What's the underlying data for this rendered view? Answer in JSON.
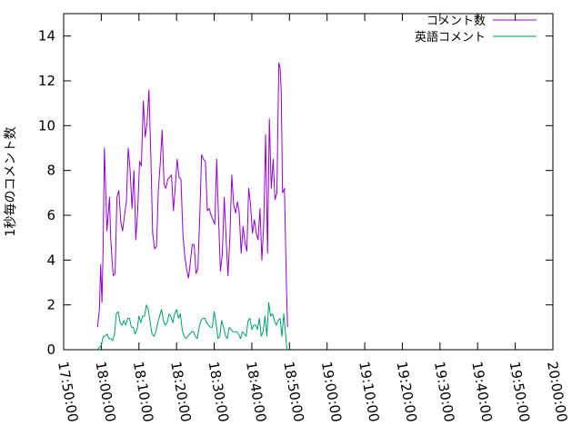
{
  "chart_data": {
    "type": "line",
    "ylabel": "1秒毎のコメント数",
    "xlabel": "",
    "title": "",
    "ylim": [
      0,
      15
    ],
    "xlim": [
      "17:50:00",
      "20:00:00"
    ],
    "x_ticks": [
      "17:50:00",
      "18:00:00",
      "18:10:00",
      "18:20:00",
      "18:30:00",
      "18:40:00",
      "18:50:00",
      "19:00:00",
      "19:10:00",
      "19:20:00",
      "19:30:00",
      "19:40:00",
      "19:50:00",
      "20:00:00"
    ],
    "y_ticks": [
      "0",
      "2",
      "4",
      "6",
      "8",
      "10",
      "12",
      "14"
    ],
    "grid": false,
    "legend": "top-right",
    "series": [
      {
        "name": "コメント数",
        "color": "#9400d3",
        "points": [
          [
            "17:59:00",
            1.0
          ],
          [
            "17:59:30",
            1.8
          ],
          [
            "17:59:50",
            3.8
          ],
          [
            "18:00:10",
            2.1
          ],
          [
            "18:00:30",
            4.7
          ],
          [
            "18:00:50",
            9.0
          ],
          [
            "18:01:10",
            7.2
          ],
          [
            "18:01:30",
            5.3
          ],
          [
            "18:02:10",
            6.8
          ],
          [
            "18:02:30",
            5.0
          ],
          [
            "18:02:50",
            4.1
          ],
          [
            "18:03:10",
            3.3
          ],
          [
            "18:03:40",
            3.4
          ],
          [
            "18:04:10",
            6.8
          ],
          [
            "18:04:40",
            7.1
          ],
          [
            "18:05:10",
            5.7
          ],
          [
            "18:05:40",
            5.3
          ],
          [
            "18:06:10",
            6.0
          ],
          [
            "18:06:40",
            6.6
          ],
          [
            "18:07:10",
            9.0
          ],
          [
            "18:07:40",
            8.0
          ],
          [
            "18:08:10",
            6.3
          ],
          [
            "18:08:40",
            8.0
          ],
          [
            "18:09:10",
            4.9
          ],
          [
            "18:09:40",
            6.2
          ],
          [
            "18:10:10",
            8.4
          ],
          [
            "18:10:40",
            8.2
          ],
          [
            "18:11:10",
            11.1
          ],
          [
            "18:11:40",
            9.5
          ],
          [
            "18:12:10",
            10.1
          ],
          [
            "18:12:40",
            11.6
          ],
          [
            "18:13:10",
            8.6
          ],
          [
            "18:13:40",
            5.2
          ],
          [
            "18:14:10",
            4.5
          ],
          [
            "18:14:40",
            4.6
          ],
          [
            "18:15:10",
            7.2
          ],
          [
            "18:15:40",
            8.3
          ],
          [
            "18:16:10",
            9.8
          ],
          [
            "18:16:40",
            7.4
          ],
          [
            "18:17:10",
            7.2
          ],
          [
            "18:17:40",
            7.6
          ],
          [
            "18:18:40",
            7.8
          ],
          [
            "18:19:10",
            6.2
          ],
          [
            "18:19:40",
            7.3
          ],
          [
            "18:20:10",
            8.5
          ],
          [
            "18:20:40",
            7.7
          ],
          [
            "18:21:10",
            7.6
          ],
          [
            "18:21:40",
            5.2
          ],
          [
            "18:22:10",
            4.2
          ],
          [
            "18:22:40",
            3.6
          ],
          [
            "18:23:10",
            3.2
          ],
          [
            "18:23:40",
            3.9
          ],
          [
            "18:24:10",
            4.7
          ],
          [
            "18:24:40",
            4.7
          ],
          [
            "18:25:10",
            3.4
          ],
          [
            "18:25:40",
            3.6
          ],
          [
            "18:26:10",
            6.0
          ],
          [
            "18:26:40",
            8.7
          ],
          [
            "18:27:10",
            8.5
          ],
          [
            "18:27:40",
            8.4
          ],
          [
            "18:28:10",
            6.2
          ],
          [
            "18:28:40",
            6.3
          ],
          [
            "18:29:10",
            6.0
          ],
          [
            "18:29:40",
            5.8
          ],
          [
            "18:30:10",
            5.6
          ],
          [
            "18:30:40",
            8.5
          ],
          [
            "18:31:10",
            5.8
          ],
          [
            "18:31:40",
            3.5
          ],
          [
            "18:32:10",
            4.3
          ],
          [
            "18:32:40",
            6.8
          ],
          [
            "18:33:10",
            5.0
          ],
          [
            "18:33:40",
            3.3
          ],
          [
            "18:34:10",
            5.0
          ],
          [
            "18:34:40",
            7.8
          ],
          [
            "18:35:10",
            6.5
          ],
          [
            "18:35:40",
            6.1
          ],
          [
            "18:36:10",
            6.6
          ],
          [
            "18:36:40",
            6.1
          ],
          [
            "18:37:10",
            4.3
          ],
          [
            "18:37:40",
            5.5
          ],
          [
            "18:38:10",
            4.8
          ],
          [
            "18:38:40",
            4.4
          ],
          [
            "18:39:10",
            7.2
          ],
          [
            "18:39:40",
            6.5
          ],
          [
            "18:40:10",
            5.2
          ],
          [
            "18:40:40",
            5.8
          ],
          [
            "18:41:10",
            5.2
          ],
          [
            "18:41:40",
            4.9
          ],
          [
            "18:42:10",
            6.3
          ],
          [
            "18:42:40",
            4.0
          ],
          [
            "18:43:10",
            5.6
          ],
          [
            "18:43:40",
            9.6
          ],
          [
            "18:44:10",
            4.3
          ],
          [
            "18:44:40",
            10.3
          ],
          [
            "18:45:10",
            7.2
          ],
          [
            "18:45:40",
            8.5
          ],
          [
            "18:46:10",
            6.7
          ],
          [
            "18:46:40",
            7.0
          ],
          [
            "18:47:10",
            12.8
          ],
          [
            "18:47:30",
            12.6
          ],
          [
            "18:47:50",
            11.5
          ],
          [
            "18:48:10",
            7.0
          ],
          [
            "18:48:40",
            7.2
          ],
          [
            "18:49:10",
            3.0
          ],
          [
            "18:49:30",
            1.0
          ]
        ]
      },
      {
        "name": "英語コメント",
        "color": "#009e73",
        "points": [
          [
            "17:59:00",
            0.0
          ],
          [
            "17:59:30",
            0.1
          ],
          [
            "18:00:00",
            0.2
          ],
          [
            "18:00:30",
            0.6
          ],
          [
            "18:01:00",
            0.6
          ],
          [
            "18:01:30",
            0.7
          ],
          [
            "18:02:00",
            0.5
          ],
          [
            "18:02:30",
            0.5
          ],
          [
            "18:03:00",
            0.4
          ],
          [
            "18:03:30",
            0.7
          ],
          [
            "18:04:00",
            1.6
          ],
          [
            "18:04:30",
            1.7
          ],
          [
            "18:05:00",
            1.2
          ],
          [
            "18:05:30",
            1.1
          ],
          [
            "18:06:00",
            1.3
          ],
          [
            "18:06:30",
            1.1
          ],
          [
            "18:07:00",
            1.4
          ],
          [
            "18:07:30",
            1.4
          ],
          [
            "18:08:00",
            1.0
          ],
          [
            "18:08:30",
            1.0
          ],
          [
            "18:09:00",
            0.7
          ],
          [
            "18:09:30",
            0.9
          ],
          [
            "18:10:00",
            1.5
          ],
          [
            "18:10:30",
            1.2
          ],
          [
            "18:11:00",
            1.5
          ],
          [
            "18:11:30",
            1.5
          ],
          [
            "18:12:00",
            2.0
          ],
          [
            "18:12:30",
            1.8
          ],
          [
            "18:13:00",
            1.2
          ],
          [
            "18:13:30",
            0.7
          ],
          [
            "18:14:00",
            0.6
          ],
          [
            "18:14:30",
            0.8
          ],
          [
            "18:15:00",
            1.2
          ],
          [
            "18:15:30",
            1.5
          ],
          [
            "18:16:00",
            1.8
          ],
          [
            "18:16:30",
            1.3
          ],
          [
            "18:17:00",
            1.1
          ],
          [
            "18:17:30",
            1.2
          ],
          [
            "18:18:00",
            1.6
          ],
          [
            "18:18:30",
            1.5
          ],
          [
            "18:19:00",
            1.2
          ],
          [
            "18:19:30",
            1.6
          ],
          [
            "18:20:00",
            1.8
          ],
          [
            "18:20:30",
            1.4
          ],
          [
            "18:21:00",
            1.6
          ],
          [
            "18:21:30",
            0.9
          ],
          [
            "18:22:00",
            0.6
          ],
          [
            "18:22:30",
            0.5
          ],
          [
            "18:23:00",
            0.6
          ],
          [
            "18:23:30",
            0.7
          ],
          [
            "18:24:00",
            0.8
          ],
          [
            "18:24:30",
            0.8
          ],
          [
            "18:25:00",
            0.6
          ],
          [
            "18:25:30",
            0.5
          ],
          [
            "18:26:00",
            1.0
          ],
          [
            "18:26:30",
            1.3
          ],
          [
            "18:27:00",
            1.4
          ],
          [
            "18:27:30",
            1.4
          ],
          [
            "18:28:00",
            1.2
          ],
          [
            "18:28:30",
            1.1
          ],
          [
            "18:29:00",
            1.0
          ],
          [
            "18:29:30",
            1.0
          ],
          [
            "18:30:00",
            1.7
          ],
          [
            "18:30:30",
            1.2
          ],
          [
            "18:31:00",
            0.5
          ],
          [
            "18:31:30",
            0.6
          ],
          [
            "18:32:00",
            1.3
          ],
          [
            "18:32:30",
            1.0
          ],
          [
            "18:33:00",
            0.6
          ],
          [
            "18:33:30",
            0.5
          ],
          [
            "18:34:00",
            1.0
          ],
          [
            "18:34:30",
            0.9
          ],
          [
            "18:35:00",
            0.8
          ],
          [
            "18:35:30",
            0.8
          ],
          [
            "18:36:00",
            0.8
          ],
          [
            "18:36:30",
            0.7
          ],
          [
            "18:37:00",
            0.5
          ],
          [
            "18:37:30",
            0.8
          ],
          [
            "18:38:00",
            0.7
          ],
          [
            "18:38:30",
            0.6
          ],
          [
            "18:39:00",
            1.3
          ],
          [
            "18:39:30",
            1.4
          ],
          [
            "18:40:00",
            0.9
          ],
          [
            "18:40:30",
            1.1
          ],
          [
            "18:41:00",
            1.1
          ],
          [
            "18:41:30",
            0.9
          ],
          [
            "18:42:00",
            1.4
          ],
          [
            "18:42:30",
            0.6
          ],
          [
            "18:43:00",
            0.8
          ],
          [
            "18:43:30",
            1.5
          ],
          [
            "18:44:00",
            0.6
          ],
          [
            "18:44:30",
            2.1
          ],
          [
            "18:45:00",
            1.5
          ],
          [
            "18:45:30",
            1.6
          ],
          [
            "18:46:00",
            1.3
          ],
          [
            "18:46:30",
            1.1
          ],
          [
            "18:47:00",
            1.3
          ],
          [
            "18:47:30",
            1.4
          ],
          [
            "18:48:00",
            0.6
          ],
          [
            "18:48:30",
            1.6
          ],
          [
            "18:49:00",
            0.6
          ],
          [
            "18:49:20",
            0.0
          ]
        ]
      }
    ]
  }
}
